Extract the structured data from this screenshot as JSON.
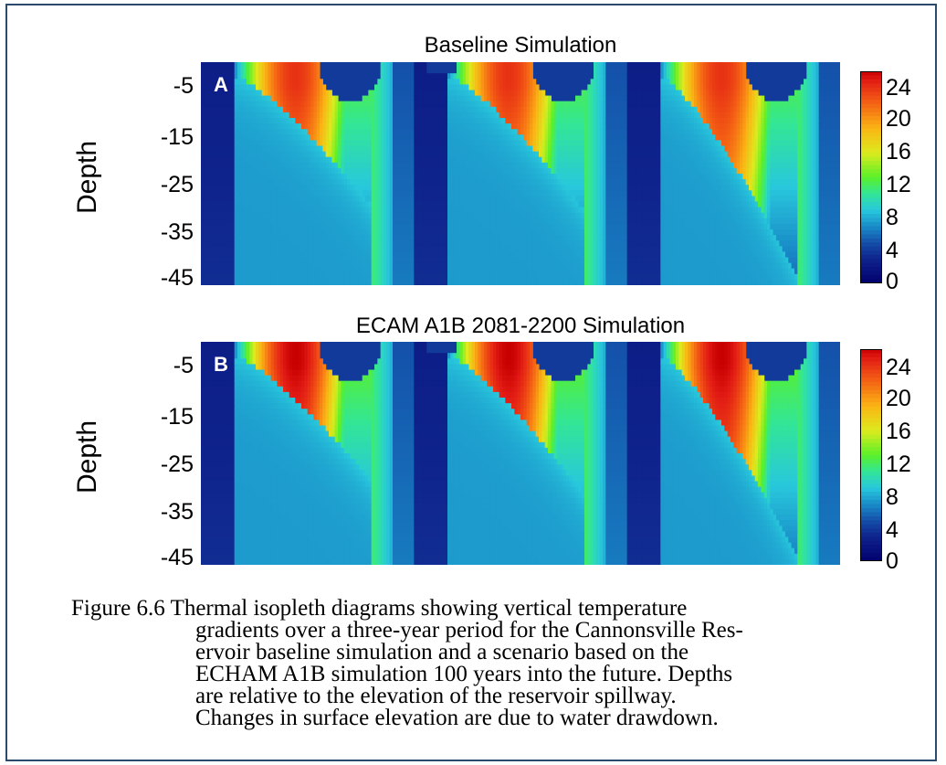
{
  "chart_data": [
    {
      "type": "heatmap",
      "title": "Baseline Simulation",
      "panel_label": "A",
      "ylabel": "Depth",
      "yticks": [
        "-5",
        "-15",
        "-25",
        "-35",
        "-45"
      ],
      "ylim": [
        -48,
        0
      ],
      "colorbar": {
        "ticks": [
          "24",
          "20",
          "16",
          "12",
          "8",
          "4",
          "0"
        ],
        "range": [
          0,
          26
        ]
      },
      "years": 3,
      "summer_surface_max_temp": 24,
      "thermocline_max_depth": [
        -31,
        -32,
        -46
      ]
    },
    {
      "type": "heatmap",
      "title": "ECAM A1B 2081-2200 Simulation",
      "panel_label": "B",
      "ylabel": "Depth",
      "yticks": [
        "-5",
        "-15",
        "-25",
        "-35",
        "-45"
      ],
      "ylim": [
        -48,
        0
      ],
      "colorbar": {
        "ticks": [
          "24",
          "20",
          "16",
          "12",
          "8",
          "4",
          "0"
        ],
        "range": [
          0,
          26
        ]
      },
      "years": 3,
      "summer_surface_max_temp": 26,
      "thermocline_max_depth": [
        -30,
        -33,
        -46
      ]
    }
  ],
  "caption": {
    "lead": "Figure 6.6  Thermal isopleth diagrams showing vertical temperature",
    "lines": [
      "gradients over a three-year period for the Cannonsville Res-",
      "ervoir baseline simulation and a scenario based on the",
      "ECHAM A1B simulation 100 years into the future. Depths",
      "are relative to the elevation of the reservoir spillway.",
      "Changes in surface elevation are due to water drawdown."
    ]
  }
}
